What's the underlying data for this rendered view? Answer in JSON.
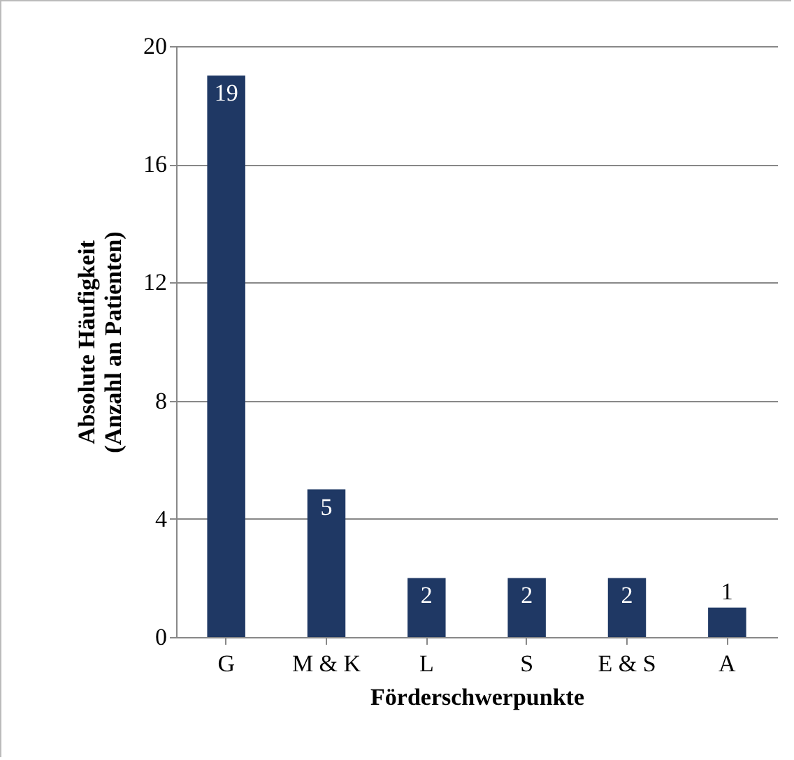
{
  "chart_data": {
    "type": "bar",
    "categories": [
      "G",
      "M & K",
      "L",
      "S",
      "E & S",
      "A"
    ],
    "values": [
      19,
      5,
      2,
      2,
      2,
      1
    ],
    "color": "#1f3864",
    "xlabel": "Förderschwerpunkte",
    "ylabel": "Absolute Häufigkeit\n(Anzahl  an Patienten)",
    "ylim": [
      0,
      20
    ],
    "yticks": [
      0,
      4,
      8,
      12,
      16,
      20
    ],
    "grid": "y",
    "data_labels": true
  }
}
